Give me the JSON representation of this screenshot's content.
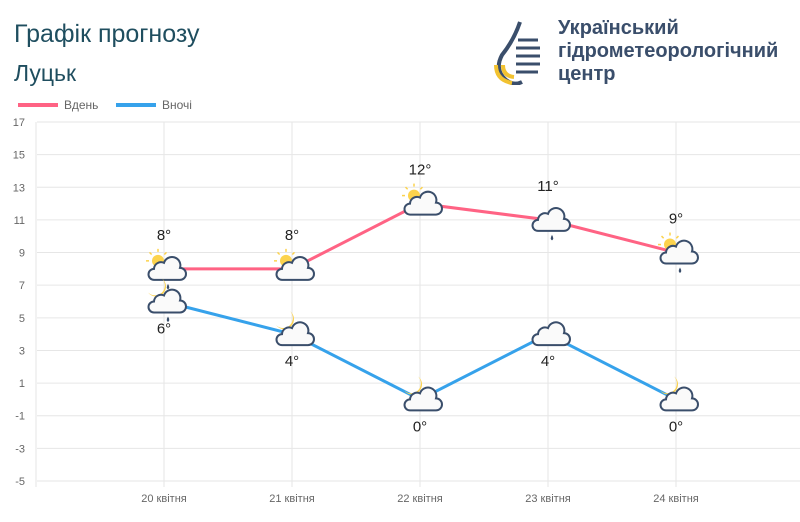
{
  "header": {
    "title": "Графік прогнозу",
    "city": "Луцьк",
    "org_lines": [
      "Український",
      "гідрометеорологічний",
      "центр"
    ]
  },
  "chart_data": {
    "type": "line",
    "categories": [
      "20 квітня",
      "21 квітня",
      "22 квітня",
      "23 квітня",
      "24 квітня"
    ],
    "series": [
      {
        "name": "Вдень",
        "color": "#ff6384",
        "values": [
          8,
          8,
          12,
          11,
          9
        ],
        "labels": [
          "8°",
          "8°",
          "12°",
          "11°",
          "9°"
        ],
        "icons": [
          "partly-cloudy-rain",
          "partly-cloudy",
          "partly-cloudy",
          "cloud-rain",
          "partly-cloudy-rain"
        ]
      },
      {
        "name": "Вночі",
        "color": "#36a2eb",
        "values": [
          6,
          4,
          0,
          4,
          0
        ],
        "labels": [
          "6°",
          "4°",
          "0°",
          "4°",
          "0°"
        ],
        "icons": [
          "moon-cloud-rain",
          "moon-cloud",
          "moon-cloud",
          "cloud",
          "moon-cloud"
        ]
      }
    ],
    "yticks": [
      17,
      15,
      13,
      11,
      9,
      7,
      5,
      3,
      1,
      -1,
      -3,
      -5
    ],
    "ylim": [
      -5,
      17
    ],
    "grid": true,
    "legend": "top-left"
  }
}
